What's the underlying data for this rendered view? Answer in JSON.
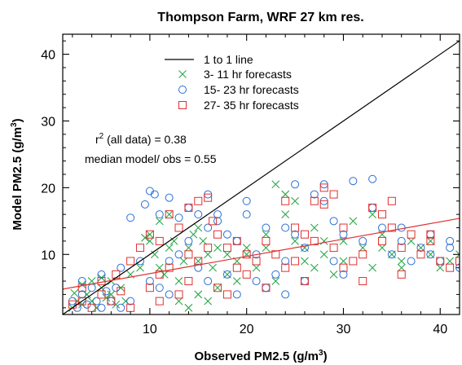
{
  "chart_data": {
    "type": "scatter",
    "title": "Thompson Farm, WRF 27 km res.",
    "xlabel": {
      "main": "Observed PM2.5 (g/m",
      "sup": "3",
      "close": ")"
    },
    "ylabel": {
      "main": "Model PM2.5 (g/m",
      "sup": "3",
      "close": ")"
    },
    "xlim": [
      1,
      42
    ],
    "ylim": [
      1,
      43
    ],
    "xticks": [
      10,
      20,
      30,
      40
    ],
    "yticks": [
      10,
      20,
      30,
      40
    ],
    "grid": false,
    "legend_position": "top-left",
    "annotations": {
      "r2_prefix": "r",
      "r2_sup": "2",
      "r2_rest": " (all data) = 0.38",
      "median": "median model/ obs = 0.55"
    },
    "lines": [
      {
        "name": "1 to 1 line",
        "color": "#000000",
        "x": [
          1,
          42
        ],
        "y": [
          1,
          42
        ]
      },
      {
        "name": "",
        "color": "#e03030",
        "x": [
          1,
          42
        ],
        "y": [
          4.8,
          15.4
        ]
      }
    ],
    "series": [
      {
        "name": "3- 11 hr forecasts",
        "marker": "x",
        "color": "#2aa84a",
        "points": [
          [
            2,
            2
          ],
          [
            2.5,
            3
          ],
          [
            3,
            2.5
          ],
          [
            3.5,
            4
          ],
          [
            4,
            3
          ],
          [
            4.5,
            2
          ],
          [
            5,
            5
          ],
          [
            5.5,
            3.5
          ],
          [
            6,
            4
          ],
          [
            6.5,
            2.5
          ],
          [
            7,
            5
          ],
          [
            7.5,
            3
          ],
          [
            3,
            5.5
          ],
          [
            4,
            6
          ],
          [
            5,
            6.5
          ],
          [
            2.2,
            4.2
          ],
          [
            6,
            6
          ],
          [
            8,
            7
          ],
          [
            9,
            8
          ],
          [
            9.5,
            12.5
          ],
          [
            10,
            13
          ],
          [
            10.5,
            10
          ],
          [
            11,
            8
          ],
          [
            11.5,
            7
          ],
          [
            12,
            11
          ],
          [
            12.5,
            12
          ],
          [
            13,
            6
          ],
          [
            13.5,
            9
          ],
          [
            14,
            11
          ],
          [
            14.5,
            13
          ],
          [
            15,
            14
          ],
          [
            15.5,
            12
          ],
          [
            16,
            10
          ],
          [
            16.5,
            8
          ],
          [
            17,
            11
          ],
          [
            13,
            3
          ],
          [
            14,
            2
          ],
          [
            15,
            4
          ],
          [
            16,
            3
          ],
          [
            17,
            5
          ],
          [
            18,
            7
          ],
          [
            19,
            9
          ],
          [
            20,
            11
          ],
          [
            21,
            8
          ],
          [
            22,
            13
          ],
          [
            23,
            20.5
          ],
          [
            24,
            16
          ],
          [
            25,
            12
          ],
          [
            26,
            9
          ],
          [
            27,
            14
          ],
          [
            28,
            10
          ],
          [
            29,
            7
          ],
          [
            30,
            12
          ],
          [
            31,
            15
          ],
          [
            32,
            11
          ],
          [
            33,
            8
          ],
          [
            34,
            13
          ],
          [
            35,
            10
          ],
          [
            36,
            9
          ],
          [
            37,
            12
          ],
          [
            38,
            11
          ],
          [
            39,
            10
          ],
          [
            40,
            8
          ],
          [
            41,
            9
          ],
          [
            42,
            10
          ],
          [
            11,
            15
          ],
          [
            12,
            16
          ],
          [
            10,
            12
          ],
          [
            15,
            9
          ],
          [
            19,
            6
          ],
          [
            24,
            19
          ],
          [
            25,
            18
          ],
          [
            20,
            10
          ],
          [
            22,
            11
          ],
          [
            27,
            8
          ],
          [
            26,
            11
          ],
          [
            33,
            16
          ],
          [
            36,
            8
          ],
          [
            18,
            10
          ],
          [
            23,
            6
          ],
          [
            28,
            12
          ],
          [
            30,
            9
          ],
          [
            34,
            11
          ],
          [
            39,
            12
          ]
        ]
      },
      {
        "name": "15- 23 hr forecasts",
        "marker": "circle",
        "color": "#2a6fd6",
        "points": [
          [
            2,
            3
          ],
          [
            2.5,
            2
          ],
          [
            3,
            4
          ],
          [
            3.5,
            2.5
          ],
          [
            4,
            5
          ],
          [
            4.5,
            3
          ],
          [
            5,
            2
          ],
          [
            5.5,
            4.5
          ],
          [
            6,
            3
          ],
          [
            6.5,
            5
          ],
          [
            7,
            2
          ],
          [
            8,
            3
          ],
          [
            3,
            6
          ],
          [
            5,
            7
          ],
          [
            7,
            8
          ],
          [
            9,
            9
          ],
          [
            10,
            19.5
          ],
          [
            10.5,
            19
          ],
          [
            9.5,
            17.5
          ],
          [
            11,
            16
          ],
          [
            12,
            18.5
          ],
          [
            13,
            15.5
          ],
          [
            14,
            17
          ],
          [
            15,
            16
          ],
          [
            16,
            14
          ],
          [
            17,
            15
          ],
          [
            18,
            13
          ],
          [
            19,
            12
          ],
          [
            20,
            16
          ],
          [
            21,
            10
          ],
          [
            22,
            14
          ],
          [
            23,
            7
          ],
          [
            24,
            9
          ],
          [
            25,
            13
          ],
          [
            26,
            11
          ],
          [
            27,
            19
          ],
          [
            28,
            20.5
          ],
          [
            29,
            15
          ],
          [
            30,
            13
          ],
          [
            31,
            21
          ],
          [
            32,
            12
          ],
          [
            33,
            21.3
          ],
          [
            34,
            14
          ],
          [
            35,
            10
          ],
          [
            36,
            12
          ],
          [
            37,
            9
          ],
          [
            38,
            11
          ],
          [
            39,
            10
          ],
          [
            40,
            9
          ],
          [
            41,
            11
          ],
          [
            42,
            8
          ],
          [
            10,
            6
          ],
          [
            11,
            5
          ],
          [
            12,
            9
          ],
          [
            13,
            10
          ],
          [
            14,
            12
          ],
          [
            15,
            8
          ],
          [
            16,
            6
          ],
          [
            17,
            16
          ],
          [
            18,
            7
          ],
          [
            19,
            4
          ],
          [
            20,
            18
          ],
          [
            21,
            6
          ],
          [
            22,
            5
          ],
          [
            24,
            4
          ],
          [
            25,
            20.5
          ],
          [
            26,
            6
          ],
          [
            28,
            18
          ],
          [
            30,
            7
          ],
          [
            33,
            17
          ],
          [
            36,
            14
          ],
          [
            39,
            13
          ],
          [
            41,
            12
          ],
          [
            8,
            15.5
          ],
          [
            12,
            4
          ],
          [
            16,
            19
          ],
          [
            24,
            14
          ],
          [
            29,
            9
          ]
        ]
      },
      {
        "name": "27- 35 hr forecasts",
        "marker": "square",
        "color": "#e03030",
        "points": [
          [
            2,
            2.5
          ],
          [
            3,
            3
          ],
          [
            4,
            2
          ],
          [
            5,
            4
          ],
          [
            6,
            3
          ],
          [
            7,
            4.5
          ],
          [
            8,
            2
          ],
          [
            3,
            5
          ],
          [
            5,
            6
          ],
          [
            6.5,
            7
          ],
          [
            8,
            9
          ],
          [
            9,
            11
          ],
          [
            10,
            13
          ],
          [
            11,
            12
          ],
          [
            12,
            16
          ],
          [
            13,
            14
          ],
          [
            14,
            17
          ],
          [
            15,
            18
          ],
          [
            16,
            18.5
          ],
          [
            16.5,
            15
          ],
          [
            17,
            13
          ],
          [
            18,
            11
          ],
          [
            19,
            12
          ],
          [
            20,
            10
          ],
          [
            21,
            9
          ],
          [
            22,
            12
          ],
          [
            23,
            10
          ],
          [
            24,
            18
          ],
          [
            25,
            14
          ],
          [
            26,
            13
          ],
          [
            27,
            12
          ],
          [
            28,
            17.5
          ],
          [
            29,
            11
          ],
          [
            30,
            14
          ],
          [
            31,
            9
          ],
          [
            32,
            10
          ],
          [
            33,
            17
          ],
          [
            34,
            12
          ],
          [
            35,
            14
          ],
          [
            36,
            11
          ],
          [
            37,
            13
          ],
          [
            38,
            10
          ],
          [
            39,
            12
          ],
          [
            40,
            9
          ],
          [
            41,
            8
          ],
          [
            42,
            9
          ],
          [
            10,
            5
          ],
          [
            11,
            7
          ],
          [
            12,
            8
          ],
          [
            13,
            4
          ],
          [
            14,
            6
          ],
          [
            15,
            9
          ],
          [
            16,
            11
          ],
          [
            17,
            5
          ],
          [
            18,
            4
          ],
          [
            20,
            7
          ],
          [
            22,
            5
          ],
          [
            24,
            8
          ],
          [
            26,
            6
          ],
          [
            27,
            18
          ],
          [
            28,
            20
          ],
          [
            30,
            8
          ],
          [
            32,
            6
          ],
          [
            34,
            16
          ],
          [
            36,
            7
          ],
          [
            39,
            13
          ],
          [
            11,
            3
          ],
          [
            14,
            10
          ],
          [
            19,
            8
          ],
          [
            25,
            9
          ],
          [
            29,
            19
          ],
          [
            35,
            18
          ]
        ]
      }
    ]
  }
}
